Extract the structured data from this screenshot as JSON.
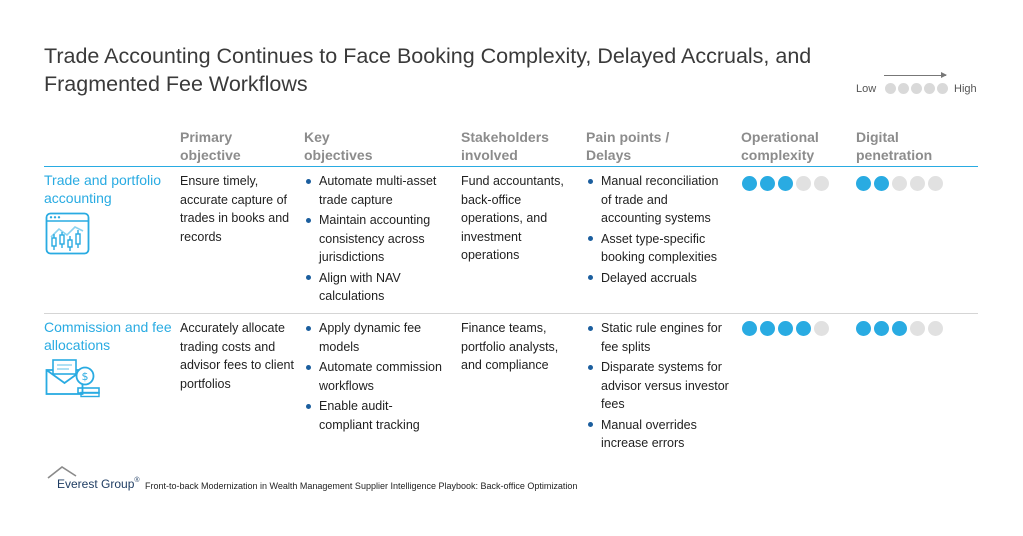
{
  "title": "Trade Accounting Continues to Face Booking Complexity, Delayed Accruals, and Fragmented Fee Workflows",
  "legend": {
    "low": "Low",
    "high": "High",
    "dots": 5
  },
  "headers": {
    "primary": "Primary objective",
    "key": "Key objectives",
    "stakeholders": "Stakeholders involved",
    "pain": "Pain points / Delays",
    "complexity": "Operational complexity",
    "penetration": "Digital penetration"
  },
  "rows": [
    {
      "title": "Trade and portfolio accounting",
      "icon": "trading-chart-icon",
      "primary": "Ensure timely, accurate capture of trades in books and records",
      "key": [
        "Automate multi-asset trade capture",
        "Maintain accounting consistency across jurisdictions",
        "Align with NAV calculations"
      ],
      "stakeholders": "Fund accountants, back-office operations, and investment operations",
      "pain": [
        "Manual reconciliation of trade and accounting systems",
        "Asset type-specific booking complexities",
        "Delayed accruals"
      ],
      "complexity": 3,
      "penetration": 2
    },
    {
      "title": "Commission and fee allocations",
      "icon": "fee-envelope-icon",
      "primary": "Accurately allocate trading costs and advisor fees to client portfolios",
      "key": [
        "Apply dynamic fee models",
        "Automate commission workflows",
        "Enable audit-compliant tracking"
      ],
      "stakeholders": "Finance teams, portfolio analysts, and compliance",
      "pain": [
        "Static rule engines for fee splits",
        "Disparate systems for advisor versus investor fees",
        "Manual overrides increase errors"
      ],
      "complexity": 4,
      "penetration": 3
    }
  ],
  "footer": {
    "brand": "Everest Group",
    "reg": "®",
    "source": "Front-to-back Modernization in Wealth Management Supplier Intelligence Playbook: Back-office Optimization"
  }
}
